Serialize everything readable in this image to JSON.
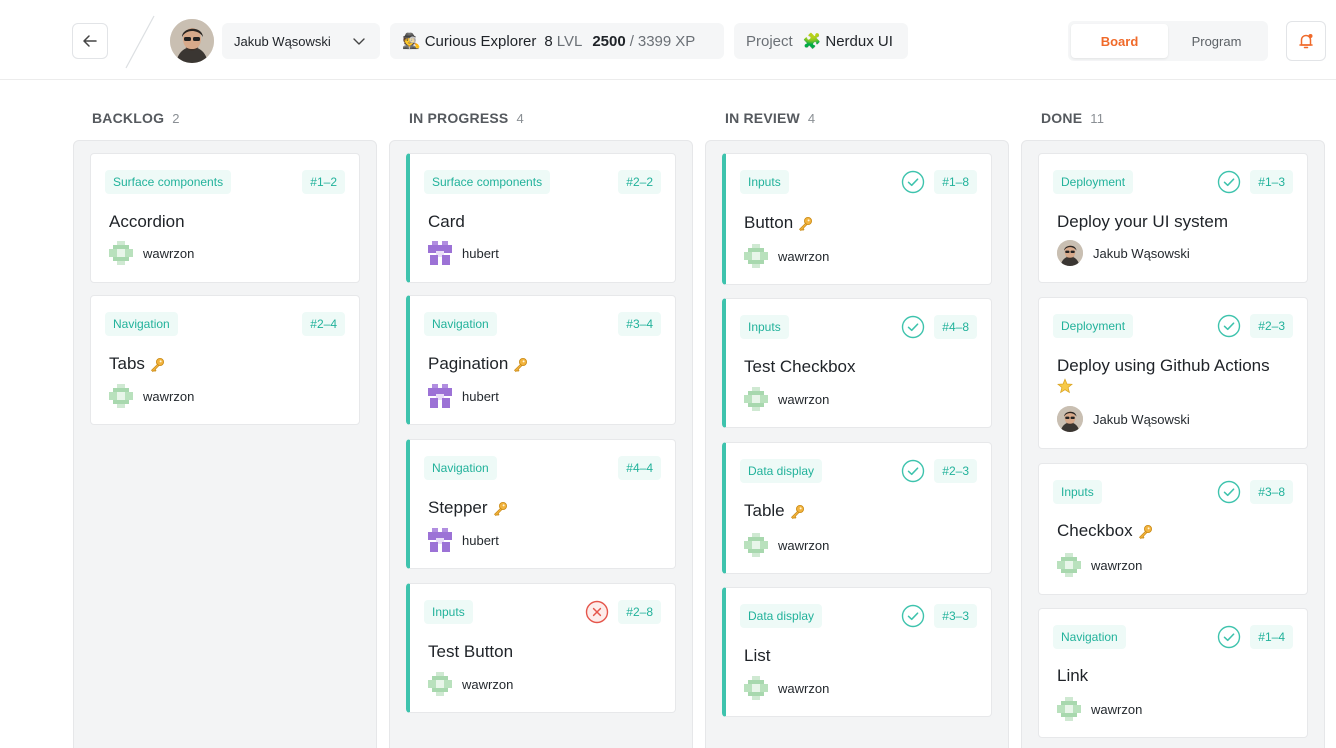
{
  "header": {
    "user_name": "Jakub Wąsowski",
    "rank_emoji": "🕵",
    "rank_title": "Curious Explorer",
    "level": "8",
    "level_unit": "LVL",
    "xp_current": "2500",
    "xp_separator": "/",
    "xp_max": "3399",
    "xp_unit": "XP",
    "project_label": "Project",
    "project_emoji": "🧩",
    "project_name": "Nerdux UI",
    "view_board": "Board",
    "view_program": "Program"
  },
  "colors": {
    "accent": "#3ec3ad",
    "tag_text": "#22b29b",
    "active_tab": "#f06a2a",
    "error": "#e5554b"
  },
  "columns": [
    {
      "title": "BACKLOG",
      "count": "2",
      "cards": [
        {
          "tag": "Surface components",
          "id": "#1–2",
          "title": "Accordion",
          "assignee": "wawrzon",
          "avatar": "pixel-green"
        },
        {
          "tag": "Navigation",
          "id": "#2–4",
          "title": "Tabs",
          "emoji": "key-icon",
          "assignee": "wawrzon",
          "avatar": "pixel-green"
        }
      ]
    },
    {
      "title": "IN PROGRESS",
      "count": "4",
      "cards": [
        {
          "tag": "Surface components",
          "id": "#2–2",
          "title": "Card",
          "assignee": "hubert",
          "avatar": "pixel-purple"
        },
        {
          "tag": "Navigation",
          "id": "#3–4",
          "title": "Pagination",
          "emoji": "key-icon",
          "assignee": "hubert",
          "avatar": "pixel-purple"
        },
        {
          "tag": "Navigation",
          "id": "#4–4",
          "title": "Stepper",
          "emoji": "key-icon",
          "assignee": "hubert",
          "avatar": "pixel-purple"
        },
        {
          "tag": "Inputs",
          "id": "#2–8",
          "title": "Test Button",
          "status": "rejected-icon",
          "assignee": "wawrzon",
          "avatar": "pixel-green"
        }
      ]
    },
    {
      "title": "IN REVIEW",
      "count": "4",
      "cards": [
        {
          "tag": "Inputs",
          "id": "#1–8",
          "title": "Button",
          "emoji": "key-icon",
          "status": "approved-icon",
          "assignee": "wawrzon",
          "avatar": "pixel-green"
        },
        {
          "tag": "Inputs",
          "id": "#4–8",
          "title": "Test Checkbox",
          "status": "approved-icon",
          "assignee": "wawrzon",
          "avatar": "pixel-green"
        },
        {
          "tag": "Data display",
          "id": "#2–3",
          "title": "Table",
          "emoji": "key-icon",
          "status": "approved-icon",
          "assignee": "wawrzon",
          "avatar": "pixel-green"
        },
        {
          "tag": "Data display",
          "id": "#3–3",
          "title": "List",
          "status": "approved-icon",
          "assignee": "wawrzon",
          "avatar": "pixel-green"
        }
      ]
    },
    {
      "title": "DONE",
      "count": "11",
      "cards": [
        {
          "tag": "Deployment",
          "id": "#1–3",
          "title": "Deploy your UI system",
          "status": "approved-icon",
          "assignee": "Jakub Wąsowski",
          "avatar": "photo"
        },
        {
          "tag": "Deployment",
          "id": "#2–3",
          "title": "Deploy using Github Actions",
          "emoji": "star-icon",
          "status": "approved-icon",
          "assignee": "Jakub Wąsowski",
          "avatar": "photo"
        },
        {
          "tag": "Inputs",
          "id": "#3–8",
          "title": "Checkbox",
          "emoji": "key-icon",
          "status": "approved-icon",
          "assignee": "wawrzon",
          "avatar": "pixel-green"
        },
        {
          "tag": "Navigation",
          "id": "#1–4",
          "title": "Link",
          "status": "approved-icon",
          "assignee": "wawrzon",
          "avatar": "pixel-green"
        }
      ]
    }
  ]
}
